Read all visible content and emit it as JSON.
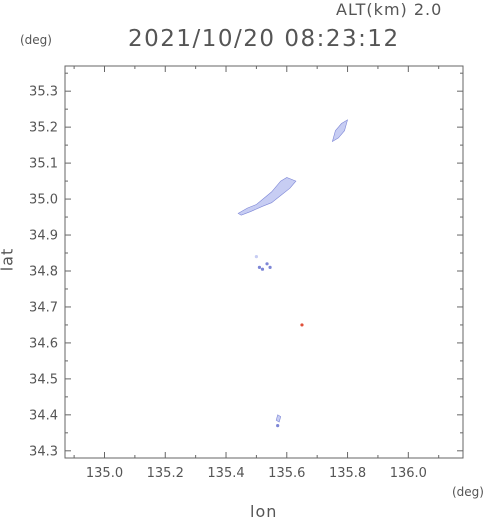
{
  "header": {
    "altitude_label": "ALT(km)  2.0",
    "timestamp": "2021/10/20 08:23:12"
  },
  "axes": {
    "y_unit": "(deg)",
    "x_unit": "(deg)",
    "x_label": "lon",
    "y_label": "lat"
  },
  "chart_data": {
    "type": "scatter",
    "title": "2021/10/20 08:23:12",
    "xlabel": "lon",
    "ylabel": "lat",
    "xlim": [
      134.87,
      136.18
    ],
    "ylim": [
      34.28,
      35.37
    ],
    "x_ticks": [
      "135.0",
      "135.2",
      "135.4",
      "135.6",
      "135.8",
      "136.0"
    ],
    "y_ticks": [
      "34.3",
      "34.4",
      "34.5",
      "34.6",
      "34.7",
      "34.8",
      "34.9",
      "35.0",
      "35.1",
      "35.2",
      "35.3"
    ],
    "grid": false,
    "colors": {
      "echo": "#c7cdf3",
      "echo_edge": "#7d86d6",
      "strong": "#e0503a",
      "axis": "#666666"
    },
    "regions": [
      {
        "name": "echo-north",
        "points": [
          [
            135.75,
            35.16
          ],
          [
            135.76,
            35.19
          ],
          [
            135.78,
            35.21
          ],
          [
            135.8,
            35.22
          ],
          [
            135.79,
            35.19
          ],
          [
            135.77,
            35.17
          ]
        ]
      },
      {
        "name": "echo-central",
        "points": [
          [
            135.44,
            34.96
          ],
          [
            135.47,
            34.975
          ],
          [
            135.5,
            34.985
          ],
          [
            135.55,
            35.02
          ],
          [
            135.58,
            35.05
          ],
          [
            135.6,
            35.06
          ],
          [
            135.63,
            35.05
          ],
          [
            135.61,
            35.03
          ],
          [
            135.58,
            35.01
          ],
          [
            135.55,
            34.99
          ],
          [
            135.52,
            34.98
          ],
          [
            135.48,
            34.965
          ],
          [
            135.45,
            34.955
          ]
        ]
      },
      {
        "name": "echo-south-small",
        "points": [
          [
            135.565,
            34.385
          ],
          [
            135.57,
            34.4
          ],
          [
            135.58,
            34.395
          ],
          [
            135.575,
            34.38
          ]
        ]
      }
    ],
    "points": [
      {
        "x": 135.51,
        "y": 34.81,
        "color": "#7d86d6"
      },
      {
        "x": 135.52,
        "y": 34.805,
        "color": "#7d86d6"
      },
      {
        "x": 135.535,
        "y": 34.82,
        "color": "#7d86d6"
      },
      {
        "x": 135.545,
        "y": 34.81,
        "color": "#7d86d6"
      },
      {
        "x": 135.5,
        "y": 34.84,
        "color": "#c7cdf3"
      },
      {
        "x": 135.65,
        "y": 34.65,
        "color": "#e0503a"
      },
      {
        "x": 135.57,
        "y": 34.37,
        "color": "#7d86d6"
      }
    ]
  }
}
